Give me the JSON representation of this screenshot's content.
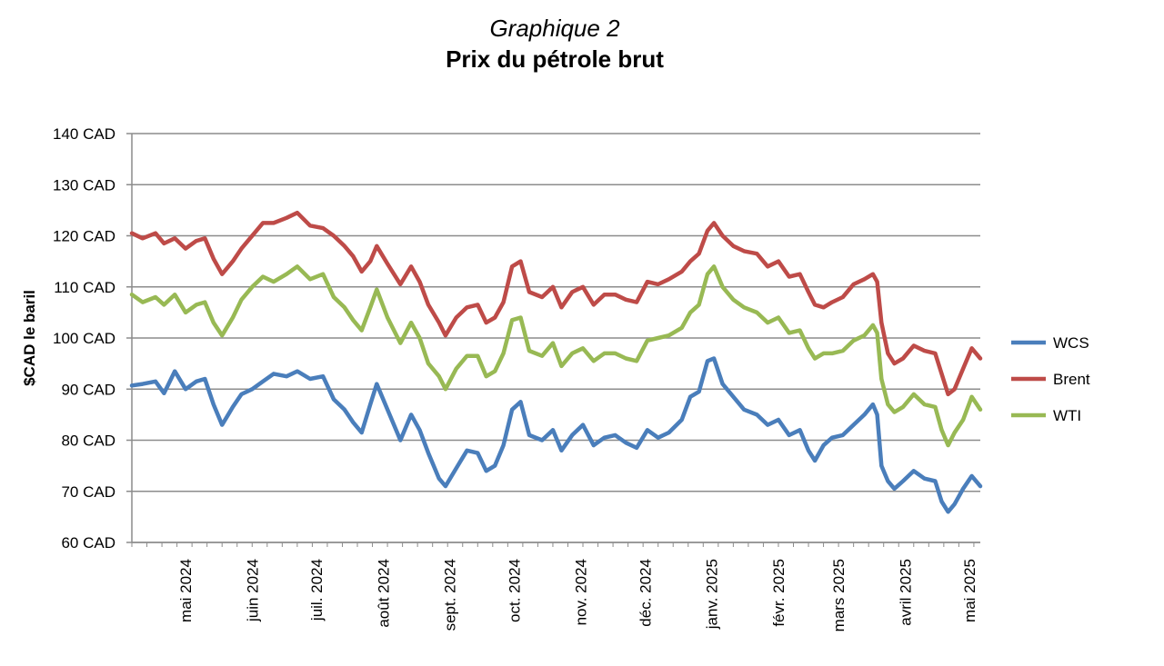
{
  "header": {
    "subtitle": "Graphique 2",
    "title": "Prix du pétrole brut"
  },
  "chart_data": {
    "type": "line",
    "title": "Prix du pétrole brut",
    "ylabel": "$CAD le baril",
    "xlabel": "",
    "ylim": [
      60,
      140
    ],
    "y_ticks": [
      "60 CAD",
      "70 CAD",
      "80 CAD",
      "90 CAD",
      "100 CAD",
      "110 CAD",
      "120 CAD",
      "130 CAD",
      "140 CAD"
    ],
    "x_ticks": [
      "mai 2024",
      "juin 2024",
      "juil. 2024",
      "août 2024",
      "sept. 2024",
      "oct. 2024",
      "nov. 2024",
      "déc. 2024",
      "janv. 2025",
      "févr. 2025",
      "mars 2025",
      "avril 2025",
      "mai 2025"
    ],
    "x_range": [
      "2024-04-20",
      "2025-05-20"
    ],
    "grid": true,
    "legend_position": "right",
    "series": [
      {
        "name": "WCS",
        "color": "#4a7ebb",
        "points": [
          [
            "2024-04-20",
            90.7
          ],
          [
            "2024-04-25",
            91.0
          ],
          [
            "2024-05-01",
            91.5
          ],
          [
            "2024-05-05",
            89.2
          ],
          [
            "2024-05-10",
            93.5
          ],
          [
            "2024-05-15",
            90.0
          ],
          [
            "2024-05-20",
            91.5
          ],
          [
            "2024-05-24",
            92.0
          ],
          [
            "2024-05-28",
            87.0
          ],
          [
            "2024-06-01",
            83.0
          ],
          [
            "2024-06-06",
            86.5
          ],
          [
            "2024-06-10",
            89.0
          ],
          [
            "2024-06-15",
            90.0
          ],
          [
            "2024-06-20",
            91.5
          ],
          [
            "2024-06-25",
            93.0
          ],
          [
            "2024-07-01",
            92.5
          ],
          [
            "2024-07-06",
            93.5
          ],
          [
            "2024-07-12",
            92.0
          ],
          [
            "2024-07-18",
            92.5
          ],
          [
            "2024-07-23",
            88.0
          ],
          [
            "2024-07-28",
            86.0
          ],
          [
            "2024-08-01",
            83.5
          ],
          [
            "2024-08-05",
            81.5
          ],
          [
            "2024-08-09",
            87.0
          ],
          [
            "2024-08-12",
            91.0
          ],
          [
            "2024-08-17",
            86.0
          ],
          [
            "2024-08-23",
            80.0
          ],
          [
            "2024-08-28",
            85.0
          ],
          [
            "2024-09-01",
            82.0
          ],
          [
            "2024-09-05",
            77.5
          ],
          [
            "2024-09-10",
            72.5
          ],
          [
            "2024-09-13",
            71.0
          ],
          [
            "2024-09-18",
            74.5
          ],
          [
            "2024-09-23",
            78.0
          ],
          [
            "2024-09-28",
            77.5
          ],
          [
            "2024-10-02",
            74.0
          ],
          [
            "2024-10-06",
            75.0
          ],
          [
            "2024-10-10",
            79.0
          ],
          [
            "2024-10-14",
            86.0
          ],
          [
            "2024-10-18",
            87.5
          ],
          [
            "2024-10-22",
            81.0
          ],
          [
            "2024-10-28",
            80.0
          ],
          [
            "2024-11-02",
            82.0
          ],
          [
            "2024-11-06",
            78.0
          ],
          [
            "2024-11-11",
            81.0
          ],
          [
            "2024-11-16",
            83.0
          ],
          [
            "2024-11-21",
            79.0
          ],
          [
            "2024-11-26",
            80.5
          ],
          [
            "2024-12-01",
            81.0
          ],
          [
            "2024-12-06",
            79.5
          ],
          [
            "2024-12-11",
            78.5
          ],
          [
            "2024-12-16",
            82.0
          ],
          [
            "2024-12-21",
            80.5
          ],
          [
            "2024-12-26",
            81.5
          ],
          [
            "2025-01-01",
            84.0
          ],
          [
            "2025-01-05",
            88.5
          ],
          [
            "2025-01-09",
            89.5
          ],
          [
            "2025-01-13",
            95.5
          ],
          [
            "2025-01-16",
            96.0
          ],
          [
            "2025-01-20",
            91.0
          ],
          [
            "2025-01-25",
            88.5
          ],
          [
            "2025-01-30",
            86.0
          ],
          [
            "2025-02-05",
            85.0
          ],
          [
            "2025-02-10",
            83.0
          ],
          [
            "2025-02-15",
            84.0
          ],
          [
            "2025-02-20",
            81.0
          ],
          [
            "2025-02-25",
            82.0
          ],
          [
            "2025-03-01",
            78.0
          ],
          [
            "2025-03-04",
            76.0
          ],
          [
            "2025-03-08",
            79.0
          ],
          [
            "2025-03-12",
            80.5
          ],
          [
            "2025-03-17",
            81.0
          ],
          [
            "2025-03-22",
            83.0
          ],
          [
            "2025-03-27",
            85.0
          ],
          [
            "2025-03-31",
            87.0
          ],
          [
            "2025-04-02",
            85.0
          ],
          [
            "2025-04-04",
            75.0
          ],
          [
            "2025-04-07",
            72.0
          ],
          [
            "2025-04-10",
            70.5
          ],
          [
            "2025-04-14",
            72.0
          ],
          [
            "2025-04-19",
            74.0
          ],
          [
            "2025-04-24",
            72.5
          ],
          [
            "2025-04-29",
            72.0
          ],
          [
            "2025-05-02",
            68.0
          ],
          [
            "2025-05-05",
            66.0
          ],
          [
            "2025-05-08",
            67.5
          ],
          [
            "2025-05-12",
            70.5
          ],
          [
            "2025-05-16",
            73.0
          ],
          [
            "2025-05-20",
            71.0
          ]
        ]
      },
      {
        "name": "Brent",
        "color": "#be4b48",
        "points": [
          [
            "2024-04-20",
            120.5
          ],
          [
            "2024-04-25",
            119.5
          ],
          [
            "2024-05-01",
            120.5
          ],
          [
            "2024-05-05",
            118.5
          ],
          [
            "2024-05-10",
            119.5
          ],
          [
            "2024-05-15",
            117.5
          ],
          [
            "2024-05-20",
            119.0
          ],
          [
            "2024-05-24",
            119.5
          ],
          [
            "2024-05-28",
            115.5
          ],
          [
            "2024-06-01",
            112.5
          ],
          [
            "2024-06-06",
            115.0
          ],
          [
            "2024-06-10",
            117.5
          ],
          [
            "2024-06-15",
            120.0
          ],
          [
            "2024-06-20",
            122.5
          ],
          [
            "2024-06-25",
            122.5
          ],
          [
            "2024-07-01",
            123.5
          ],
          [
            "2024-07-06",
            124.5
          ],
          [
            "2024-07-12",
            122.0
          ],
          [
            "2024-07-18",
            121.5
          ],
          [
            "2024-07-23",
            120.0
          ],
          [
            "2024-07-28",
            118.0
          ],
          [
            "2024-08-01",
            116.0
          ],
          [
            "2024-08-05",
            113.0
          ],
          [
            "2024-08-09",
            115.0
          ],
          [
            "2024-08-12",
            118.0
          ],
          [
            "2024-08-17",
            114.5
          ],
          [
            "2024-08-23",
            110.5
          ],
          [
            "2024-08-28",
            114.0
          ],
          [
            "2024-09-01",
            111.0
          ],
          [
            "2024-09-05",
            106.5
          ],
          [
            "2024-09-10",
            103.0
          ],
          [
            "2024-09-13",
            100.5
          ],
          [
            "2024-09-18",
            104.0
          ],
          [
            "2024-09-23",
            106.0
          ],
          [
            "2024-09-28",
            106.5
          ],
          [
            "2024-10-02",
            103.0
          ],
          [
            "2024-10-06",
            104.0
          ],
          [
            "2024-10-10",
            107.0
          ],
          [
            "2024-10-14",
            114.0
          ],
          [
            "2024-10-18",
            115.0
          ],
          [
            "2024-10-22",
            109.0
          ],
          [
            "2024-10-28",
            108.0
          ],
          [
            "2024-11-02",
            110.0
          ],
          [
            "2024-11-06",
            106.0
          ],
          [
            "2024-11-11",
            109.0
          ],
          [
            "2024-11-16",
            110.0
          ],
          [
            "2024-11-21",
            106.5
          ],
          [
            "2024-11-26",
            108.5
          ],
          [
            "2024-12-01",
            108.5
          ],
          [
            "2024-12-06",
            107.5
          ],
          [
            "2024-12-11",
            107.0
          ],
          [
            "2024-12-16",
            111.0
          ],
          [
            "2024-12-21",
            110.5
          ],
          [
            "2024-12-26",
            111.5
          ],
          [
            "2025-01-01",
            113.0
          ],
          [
            "2025-01-05",
            115.0
          ],
          [
            "2025-01-09",
            116.5
          ],
          [
            "2025-01-13",
            121.0
          ],
          [
            "2025-01-16",
            122.5
          ],
          [
            "2025-01-20",
            120.0
          ],
          [
            "2025-01-25",
            118.0
          ],
          [
            "2025-01-30",
            117.0
          ],
          [
            "2025-02-05",
            116.5
          ],
          [
            "2025-02-10",
            114.0
          ],
          [
            "2025-02-15",
            115.0
          ],
          [
            "2025-02-20",
            112.0
          ],
          [
            "2025-02-25",
            112.5
          ],
          [
            "2025-03-01",
            109.0
          ],
          [
            "2025-03-04",
            106.5
          ],
          [
            "2025-03-08",
            106.0
          ],
          [
            "2025-03-12",
            107.0
          ],
          [
            "2025-03-17",
            108.0
          ],
          [
            "2025-03-22",
            110.5
          ],
          [
            "2025-03-27",
            111.5
          ],
          [
            "2025-03-31",
            112.5
          ],
          [
            "2025-04-02",
            111.0
          ],
          [
            "2025-04-04",
            103.0
          ],
          [
            "2025-04-07",
            97.0
          ],
          [
            "2025-04-10",
            95.0
          ],
          [
            "2025-04-14",
            96.0
          ],
          [
            "2025-04-19",
            98.5
          ],
          [
            "2025-04-24",
            97.5
          ],
          [
            "2025-04-29",
            97.0
          ],
          [
            "2025-05-02",
            93.0
          ],
          [
            "2025-05-05",
            89.0
          ],
          [
            "2025-05-08",
            90.0
          ],
          [
            "2025-05-12",
            94.0
          ],
          [
            "2025-05-16",
            98.0
          ],
          [
            "2025-05-20",
            96.0
          ]
        ]
      },
      {
        "name": "WTI",
        "color": "#98b954",
        "points": [
          [
            "2024-04-20",
            108.5
          ],
          [
            "2024-04-25",
            107.0
          ],
          [
            "2024-05-01",
            108.0
          ],
          [
            "2024-05-05",
            106.5
          ],
          [
            "2024-05-10",
            108.5
          ],
          [
            "2024-05-15",
            105.0
          ],
          [
            "2024-05-20",
            106.5
          ],
          [
            "2024-05-24",
            107.0
          ],
          [
            "2024-05-28",
            103.0
          ],
          [
            "2024-06-01",
            100.5
          ],
          [
            "2024-06-06",
            104.0
          ],
          [
            "2024-06-10",
            107.5
          ],
          [
            "2024-06-15",
            110.0
          ],
          [
            "2024-06-20",
            112.0
          ],
          [
            "2024-06-25",
            111.0
          ],
          [
            "2024-07-01",
            112.5
          ],
          [
            "2024-07-06",
            114.0
          ],
          [
            "2024-07-12",
            111.5
          ],
          [
            "2024-07-18",
            112.5
          ],
          [
            "2024-07-23",
            108.0
          ],
          [
            "2024-07-28",
            106.0
          ],
          [
            "2024-08-01",
            103.5
          ],
          [
            "2024-08-05",
            101.5
          ],
          [
            "2024-08-09",
            106.0
          ],
          [
            "2024-08-12",
            109.5
          ],
          [
            "2024-08-17",
            104.0
          ],
          [
            "2024-08-23",
            99.0
          ],
          [
            "2024-08-28",
            103.0
          ],
          [
            "2024-09-01",
            100.0
          ],
          [
            "2024-09-05",
            95.0
          ],
          [
            "2024-09-10",
            92.5
          ],
          [
            "2024-09-13",
            90.0
          ],
          [
            "2024-09-18",
            94.0
          ],
          [
            "2024-09-23",
            96.5
          ],
          [
            "2024-09-28",
            96.5
          ],
          [
            "2024-10-02",
            92.5
          ],
          [
            "2024-10-06",
            93.5
          ],
          [
            "2024-10-10",
            97.0
          ],
          [
            "2024-10-14",
            103.5
          ],
          [
            "2024-10-18",
            104.0
          ],
          [
            "2024-10-22",
            97.5
          ],
          [
            "2024-10-28",
            96.5
          ],
          [
            "2024-11-02",
            99.0
          ],
          [
            "2024-11-06",
            94.5
          ],
          [
            "2024-11-11",
            97.0
          ],
          [
            "2024-11-16",
            98.0
          ],
          [
            "2024-11-21",
            95.5
          ],
          [
            "2024-11-26",
            97.0
          ],
          [
            "2024-12-01",
            97.0
          ],
          [
            "2024-12-06",
            96.0
          ],
          [
            "2024-12-11",
            95.5
          ],
          [
            "2024-12-16",
            99.5
          ],
          [
            "2024-12-21",
            100.0
          ],
          [
            "2024-12-26",
            100.5
          ],
          [
            "2025-01-01",
            102.0
          ],
          [
            "2025-01-05",
            105.0
          ],
          [
            "2025-01-09",
            106.5
          ],
          [
            "2025-01-13",
            112.5
          ],
          [
            "2025-01-16",
            114.0
          ],
          [
            "2025-01-20",
            110.0
          ],
          [
            "2025-01-25",
            107.5
          ],
          [
            "2025-01-30",
            106.0
          ],
          [
            "2025-02-05",
            105.0
          ],
          [
            "2025-02-10",
            103.0
          ],
          [
            "2025-02-15",
            104.0
          ],
          [
            "2025-02-20",
            101.0
          ],
          [
            "2025-02-25",
            101.5
          ],
          [
            "2025-03-01",
            98.0
          ],
          [
            "2025-03-04",
            96.0
          ],
          [
            "2025-03-08",
            97.0
          ],
          [
            "2025-03-12",
            97.0
          ],
          [
            "2025-03-17",
            97.5
          ],
          [
            "2025-03-22",
            99.5
          ],
          [
            "2025-03-27",
            100.5
          ],
          [
            "2025-03-31",
            102.5
          ],
          [
            "2025-04-02",
            101.0
          ],
          [
            "2025-04-04",
            92.0
          ],
          [
            "2025-04-07",
            87.0
          ],
          [
            "2025-04-10",
            85.5
          ],
          [
            "2025-04-14",
            86.5
          ],
          [
            "2025-04-19",
            89.0
          ],
          [
            "2025-04-24",
            87.0
          ],
          [
            "2025-04-29",
            86.5
          ],
          [
            "2025-05-02",
            82.0
          ],
          [
            "2025-05-05",
            79.0
          ],
          [
            "2025-05-08",
            81.5
          ],
          [
            "2025-05-12",
            84.0
          ],
          [
            "2025-05-16",
            88.5
          ],
          [
            "2025-05-20",
            86.0
          ]
        ]
      }
    ]
  }
}
